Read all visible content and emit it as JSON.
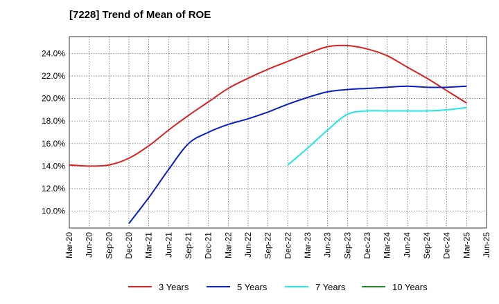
{
  "title": "[7228]  Trend of Mean of ROE",
  "chart_data": {
    "type": "line",
    "title": "[7228]  Trend of Mean of ROE",
    "xlabel": "",
    "ylabel": "",
    "ylim": [
      8.5,
      25.5
    ],
    "y_ticks": [
      10,
      12,
      14,
      16,
      18,
      20,
      22,
      24
    ],
    "y_tick_labels": [
      "10.0%",
      "12.0%",
      "14.0%",
      "16.0%",
      "18.0%",
      "20.0%",
      "22.0%",
      "24.0%"
    ],
    "x_tick_labels": [
      "Mar-20",
      "Jun-20",
      "Sep-20",
      "Dec-20",
      "Mar-21",
      "Jun-21",
      "Sep-21",
      "Dec-21",
      "Mar-22",
      "Jun-22",
      "Sep-22",
      "Dec-22",
      "Mar-23",
      "Jun-23",
      "Sep-23",
      "Dec-23",
      "Mar-24",
      "Jun-24",
      "Sep-24",
      "Dec-24",
      "Mar-25",
      "Jun-25"
    ],
    "grid": true,
    "legend_position": "bottom",
    "series": [
      {
        "name": "3 Years",
        "color": "#dd1f1f",
        "values": [
          14.1,
          14.0,
          14.1,
          14.7,
          15.8,
          17.2,
          18.5,
          19.7,
          20.9,
          21.8,
          22.6,
          23.3,
          24.0,
          24.6,
          24.7,
          24.4,
          23.8,
          22.8,
          21.8,
          20.7,
          19.6,
          null
        ]
      },
      {
        "name": "5 Years",
        "color": "#0a1ec8",
        "values": [
          null,
          null,
          null,
          8.9,
          11.2,
          13.7,
          16.0,
          17.0,
          17.7,
          18.2,
          18.8,
          19.5,
          20.1,
          20.6,
          20.8,
          20.9,
          21.0,
          21.1,
          21.0,
          21.0,
          21.1,
          null
        ]
      },
      {
        "name": "7 Years",
        "color": "#22e5e8",
        "values": [
          null,
          null,
          null,
          null,
          null,
          null,
          null,
          null,
          null,
          null,
          null,
          14.1,
          15.6,
          17.2,
          18.6,
          18.9,
          18.9,
          18.9,
          18.9,
          19.0,
          19.2,
          null
        ]
      },
      {
        "name": "10 Years",
        "color": "#1e8c1e",
        "values": [
          null,
          null,
          null,
          null,
          null,
          null,
          null,
          null,
          null,
          null,
          null,
          null,
          null,
          null,
          null,
          null,
          null,
          null,
          null,
          null,
          null,
          null
        ]
      }
    ]
  }
}
